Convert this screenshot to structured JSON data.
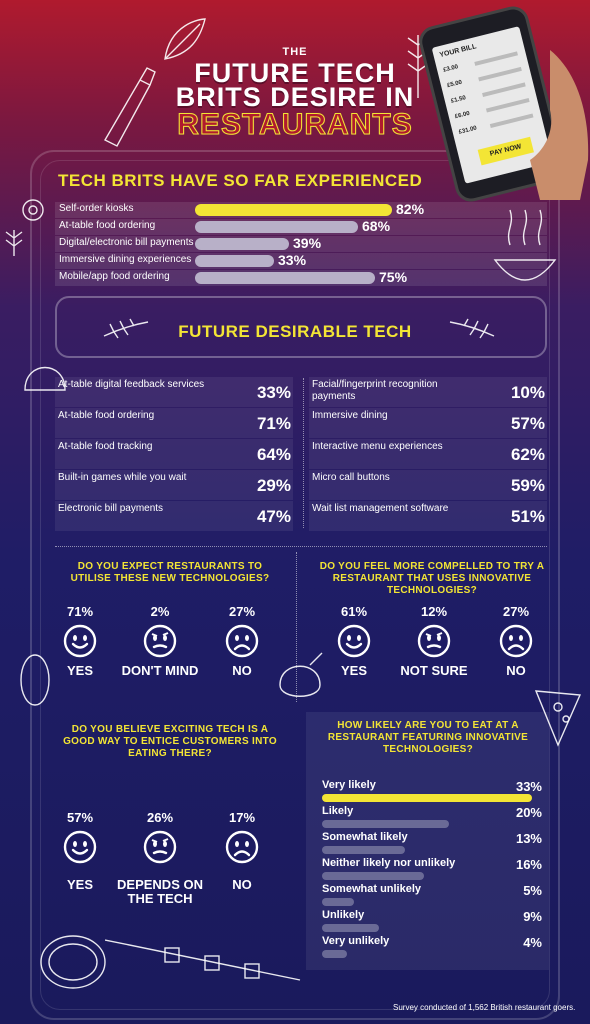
{
  "header": {
    "the": "THE",
    "line1": "FUTURE TECH",
    "line2": "BRITS DESIRE IN",
    "line3": "RESTAURANTS"
  },
  "phone": {
    "title": "YOUR BILL",
    "items": [
      "£3.00",
      "£5.00",
      "£1.50",
      "£6.00",
      "£31.00"
    ],
    "pay": "PAY NOW"
  },
  "experienced": {
    "heading": "TECH BRITS HAVE SO FAR EXPERIENCED"
  },
  "chart_data": [
    {
      "type": "bar",
      "title": "TECH BRITS HAVE SO FAR EXPERIENCED",
      "categories": [
        "Self-order kiosks",
        "At-table food ordering",
        "Digital/electronic bill payments",
        "Immersive dining experiences",
        "Mobile/app food ordering"
      ],
      "values": [
        82,
        68,
        39,
        33,
        75
      ],
      "value_labels": [
        "82%",
        "68%",
        "39%",
        "33%",
        "75%"
      ],
      "unit": "%",
      "xlim": [
        0,
        100
      ],
      "highlight_color": "#f3e535",
      "bar_color": "#b8b0c8"
    },
    {
      "type": "bar",
      "title": "HOW LIKELY ARE YOU TO EAT AT A RESTAURANT FEATURING INNOVATIVE TECHNOLOGIES?",
      "categories": [
        "Very likely",
        "Likely",
        "Somewhat likely",
        "Neither likely nor unlikely",
        "Somewhat unlikely",
        "Unlikely",
        "Very unlikely"
      ],
      "values": [
        33,
        20,
        13,
        16,
        5,
        9,
        4
      ],
      "value_labels": [
        "33%",
        "20%",
        "13%",
        "16%",
        "5%",
        "9%",
        "4%"
      ],
      "unit": "%",
      "xlim": [
        0,
        33
      ],
      "highlight_color": "#f3e535",
      "bar_color": "#6a6a96"
    }
  ],
  "future": {
    "heading": "FUTURE DESIRABLE TECH",
    "left": [
      {
        "label": "At-table digital feedback services",
        "pct": "33%"
      },
      {
        "label": "At-table food ordering",
        "pct": "71%"
      },
      {
        "label": "At-table food tracking",
        "pct": "64%"
      },
      {
        "label": "Built-in games while you wait",
        "pct": "29%"
      },
      {
        "label": "Electronic bill payments",
        "pct": "47%"
      }
    ],
    "right": [
      {
        "label": "Facial/fingerprint recognition payments",
        "pct": "10%"
      },
      {
        "label": "Immersive dining",
        "pct": "57%"
      },
      {
        "label": "Interactive menu experiences",
        "pct": "62%"
      },
      {
        "label": "Micro call buttons",
        "pct": "59%"
      },
      {
        "label": "Wait list management software",
        "pct": "51%"
      }
    ]
  },
  "q1": {
    "question": "DO YOU EXPECT RESTAURANTS TO UTILISE THESE NEW TECHNOLOGIES?",
    "answers": [
      {
        "pct": "71%",
        "label": "YES"
      },
      {
        "pct": "2%",
        "label": "DON'T MIND"
      },
      {
        "pct": "27%",
        "label": "NO"
      }
    ]
  },
  "q2": {
    "question": "DO YOU FEEL MORE COMPELLED TO TRY A RESTAURANT THAT USES INNOVATIVE TECHNOLOGIES?",
    "answers": [
      {
        "pct": "61%",
        "label": "YES"
      },
      {
        "pct": "12%",
        "label": "NOT SURE"
      },
      {
        "pct": "27%",
        "label": "NO"
      }
    ]
  },
  "q3": {
    "question": "DO YOU BELIEVE EXCITING TECH IS A GOOD WAY TO ENTICE CUSTOMERS INTO EATING THERE?",
    "answers": [
      {
        "pct": "57%",
        "label": "YES"
      },
      {
        "pct": "26%",
        "label": "DEPENDS ON THE TECH"
      },
      {
        "pct": "17%",
        "label": "NO"
      }
    ]
  },
  "likely": {
    "question": "HOW LIKELY ARE YOU TO EAT AT A RESTAURANT FEATURING INNOVATIVE TECHNOLOGIES?"
  },
  "footnote": "Survey conducted of 1,562  British restaurant goers.",
  "colors": {
    "accent": "#f3e535",
    "title_red": "#b01a2e"
  }
}
